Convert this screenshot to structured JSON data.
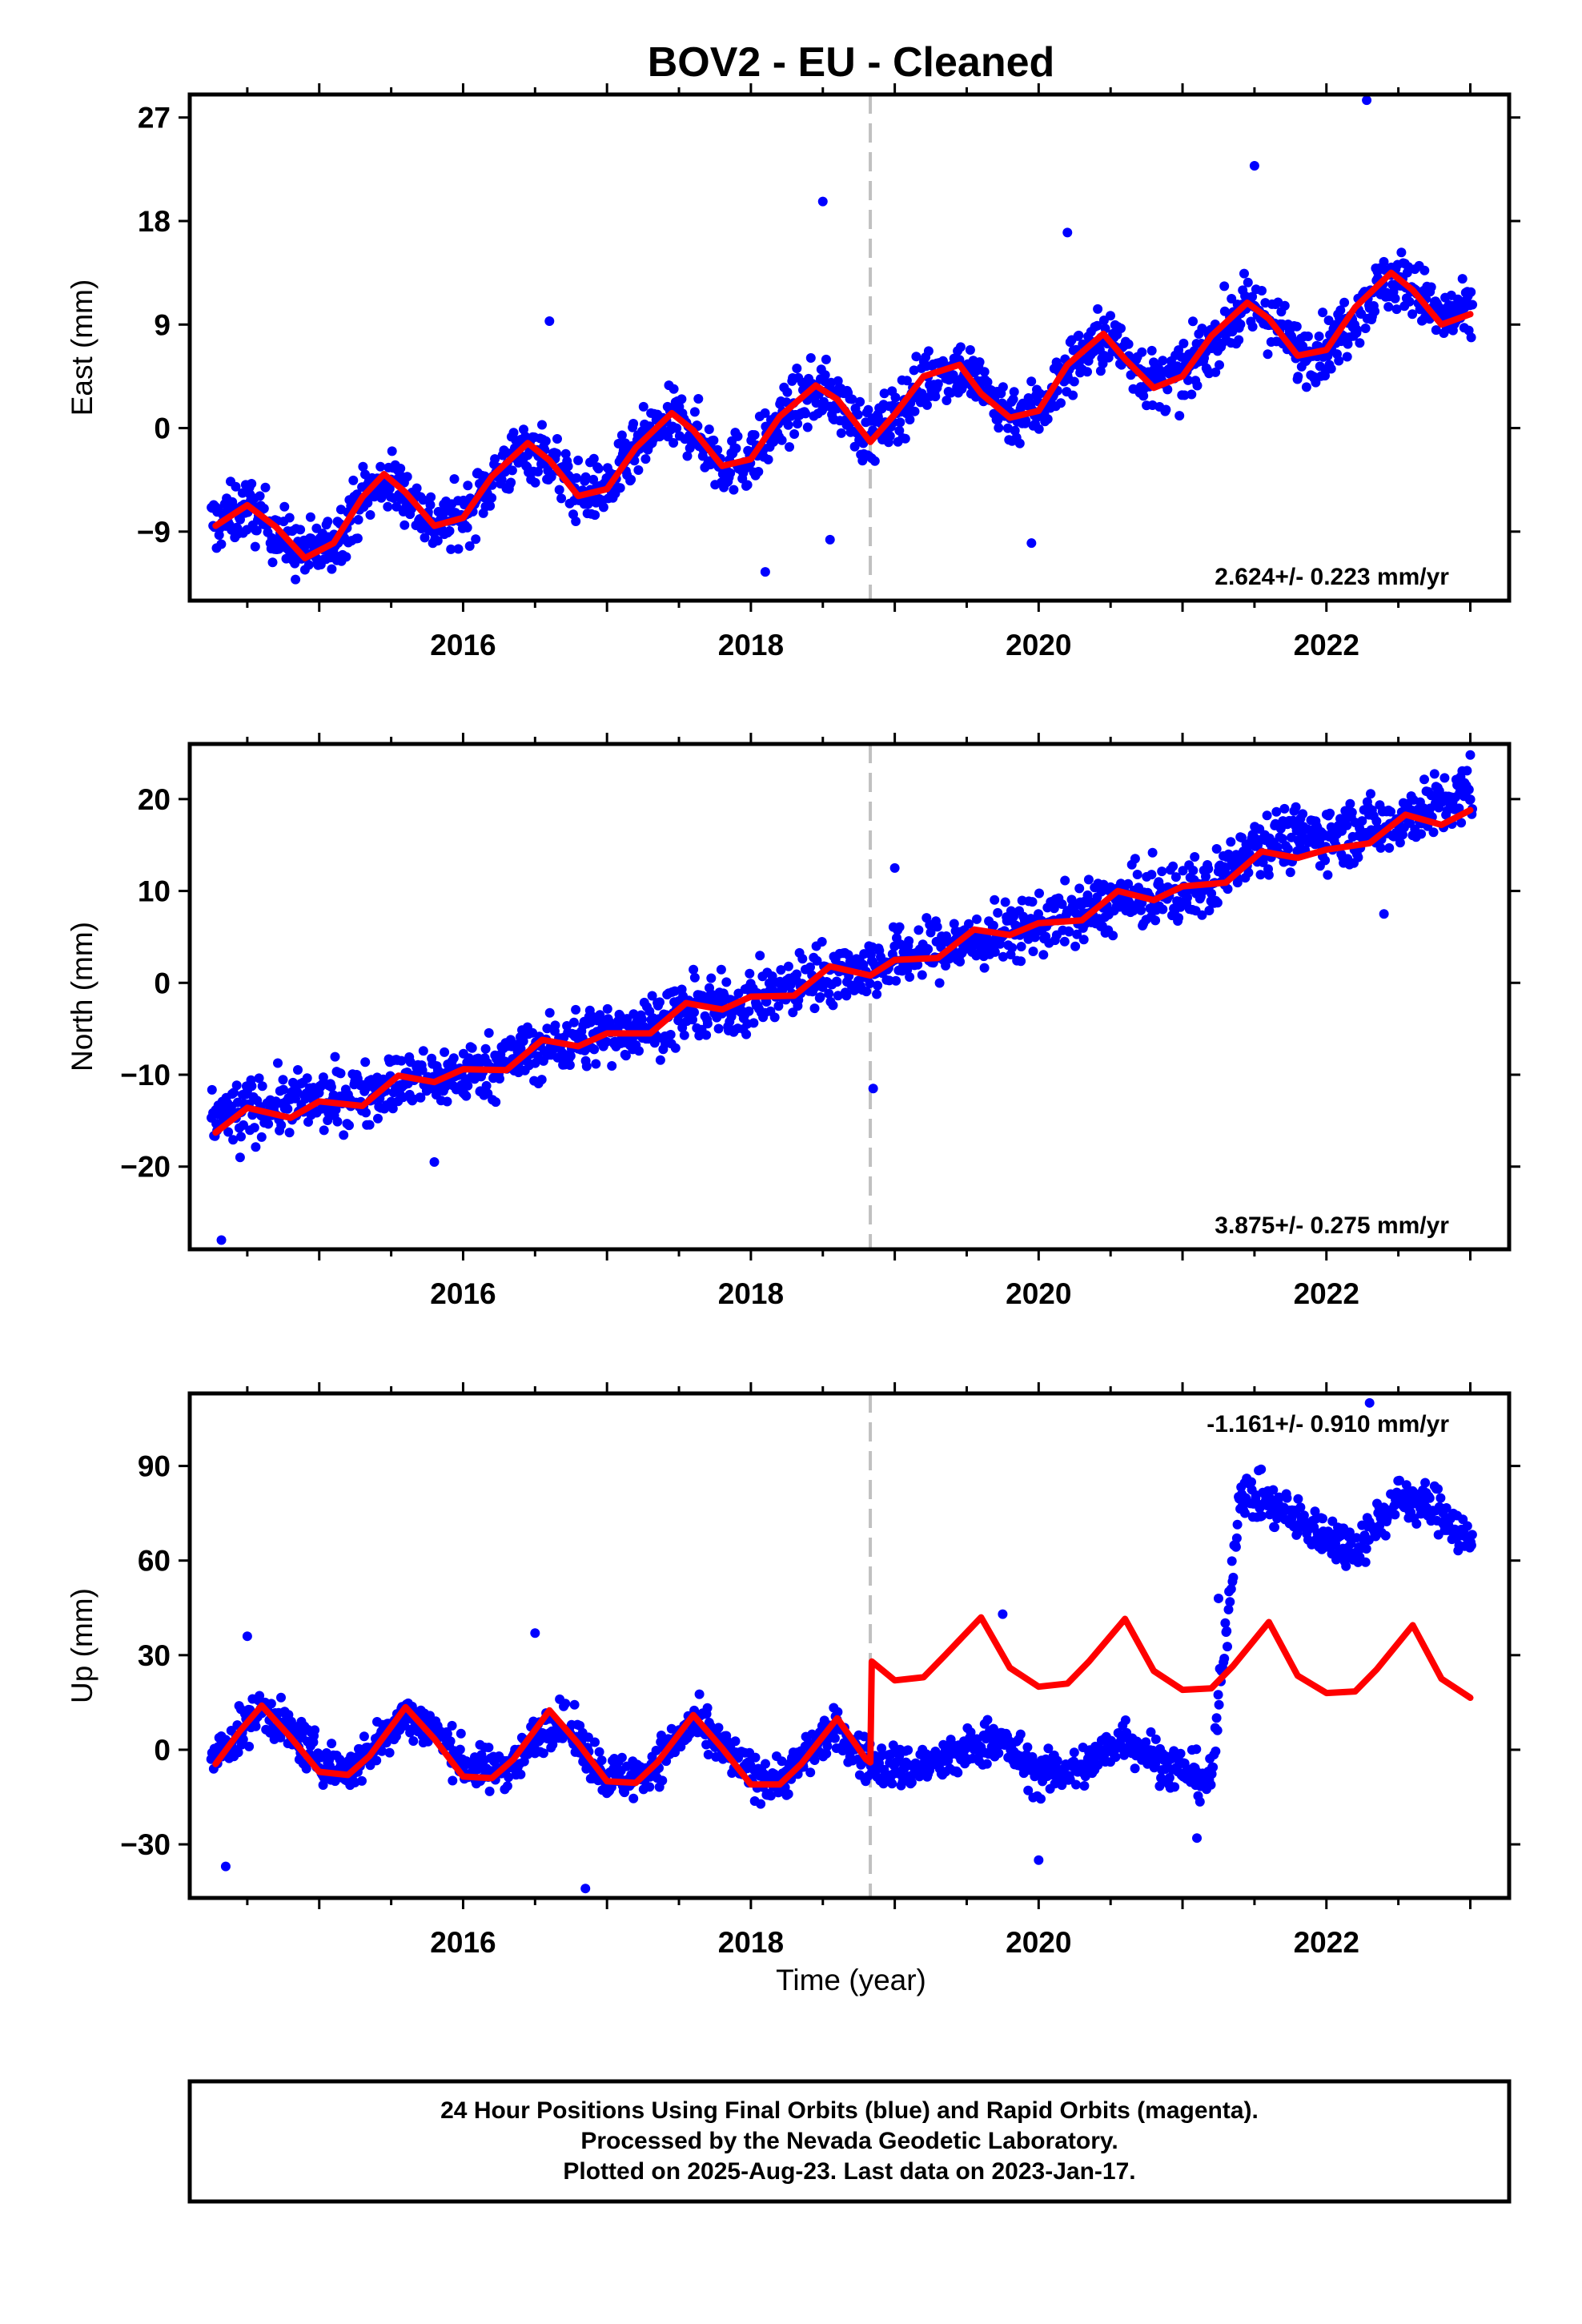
{
  "title": "BOV2  - EU - Cleaned",
  "xlabel": "Time (year)",
  "x_tick_labels": [
    "2016",
    "2018",
    "2020",
    "2022"
  ],
  "footer": {
    "line1": "24 Hour Positions Using Final Orbits (blue) and Rapid Orbits (magenta).",
    "line2": "Processed by the Nevada Geodetic Laboratory.",
    "line3": "Plotted on 2025-Aug-23. Last data on 2023-Jan-17."
  },
  "colors": {
    "points": "#0000ff",
    "model": "#ff0000",
    "break_line": "#c0c0c0",
    "frame": "#000000"
  },
  "chart_data": [
    {
      "type": "scatter",
      "ylabel": "East (mm)",
      "xlim": [
        2014.1,
        2023.27
      ],
      "ylim": [
        -15,
        29
      ],
      "yticks": [
        -9,
        0,
        9,
        18,
        27
      ],
      "xticks": [
        2016,
        2018,
        2020,
        2022
      ],
      "equipment_change": 2018.83,
      "rate_label": "2.624+/- 0.223 mm/yr",
      "rate_position": "bottom-right",
      "series": [
        {
          "kind": "model",
          "x": [
            2014.28,
            2014.5,
            2014.7,
            2014.9,
            2015.1,
            2015.3,
            2015.45,
            2015.6,
            2015.8,
            2016.0,
            2016.2,
            2016.45,
            2016.6,
            2016.8,
            2017.0,
            2017.2,
            2017.45,
            2017.6,
            2017.8,
            2018.0,
            2018.2,
            2018.45,
            2018.6,
            2018.83,
            2019.0,
            2019.2,
            2019.45,
            2019.6,
            2019.8,
            2020.0,
            2020.2,
            2020.45,
            2020.6,
            2020.8,
            2021.0,
            2021.2,
            2021.45,
            2021.6,
            2021.8,
            2022.0,
            2022.2,
            2022.45,
            2022.6,
            2022.8,
            2023.0
          ],
          "y": [
            -8.5,
            -6.7,
            -8.6,
            -11.3,
            -10.0,
            -6.0,
            -4.0,
            -5.6,
            -8.5,
            -7.8,
            -4.2,
            -1.3,
            -2.8,
            -5.9,
            -5.3,
            -1.7,
            1.3,
            -0.2,
            -3.3,
            -2.7,
            1.0,
            3.7,
            2.5,
            -1.2,
            1.2,
            4.5,
            5.5,
            3.0,
            0.9,
            1.5,
            5.5,
            8.2,
            6.0,
            3.5,
            4.5,
            8.0,
            10.9,
            9.5,
            6.3,
            6.8,
            10.5,
            13.5,
            12.0,
            9.0,
            9.9
          ]
        },
        {
          "kind": "points",
          "x": [
            2014.3,
            2014.5,
            2014.8,
            2015.05,
            2015.3,
            2015.55,
            2015.8,
            2016.05,
            2016.3,
            2016.55,
            2016.8,
            2017.05,
            2017.3,
            2017.55,
            2017.8,
            2018.05,
            2018.3,
            2018.55,
            2018.8,
            2019.05,
            2019.3,
            2019.55,
            2019.8,
            2020.05,
            2020.3,
            2020.55,
            2020.8,
            2021.05,
            2021.3,
            2021.55,
            2021.8,
            2022.05,
            2022.3,
            2022.55,
            2022.8,
            2023.0
          ],
          "y": [
            -8.0,
            -7.0,
            -10.5,
            -10.5,
            -6.2,
            -4.8,
            -8.6,
            -7.0,
            -3.5,
            -1.8,
            -5.5,
            -4.8,
            -1.0,
            0.5,
            -3.0,
            -2.4,
            1.5,
            3.2,
            -0.6,
            1.5,
            4.8,
            5.0,
            1.4,
            2.0,
            6.2,
            7.8,
            4.2,
            4.8,
            8.5,
            10.4,
            7.0,
            7.2,
            11.0,
            13.0,
            10.2,
            9.8
          ],
          "outliers": [
            [
              2018.5,
              19.7
            ],
            [
              2022.28,
              28.5
            ],
            [
              2021.5,
              22.8
            ],
            [
              2016.6,
              9.3
            ],
            [
              2019.95,
              -10.0
            ],
            [
              2018.1,
              -12.5
            ],
            [
              2018.55,
              -9.7
            ],
            [
              2020.2,
              17.0
            ]
          ]
        }
      ]
    },
    {
      "type": "scatter",
      "ylabel": "North (mm)",
      "xlim": [
        2014.1,
        2023.27
      ],
      "ylim": [
        -29,
        26
      ],
      "yticks": [
        -20,
        -10,
        0,
        10,
        20
      ],
      "xticks": [
        2016,
        2018,
        2020,
        2022
      ],
      "equipment_change": 2018.83,
      "rate_label": "3.875+/- 0.275 mm/yr",
      "rate_position": "bottom-right",
      "series": [
        {
          "kind": "model",
          "x": [
            2014.28,
            2014.5,
            2014.8,
            2015.0,
            2015.3,
            2015.55,
            2015.8,
            2016.0,
            2016.3,
            2016.55,
            2016.8,
            2017.0,
            2017.3,
            2017.55,
            2017.8,
            2018.0,
            2018.3,
            2018.55,
            2018.83,
            2019.0,
            2019.3,
            2019.55,
            2019.8,
            2020.0,
            2020.3,
            2020.55,
            2020.8,
            2021.0,
            2021.3,
            2021.55,
            2021.8,
            2022.0,
            2022.3,
            2022.55,
            2022.8,
            2023.0
          ],
          "y": [
            -16.3,
            -13.6,
            -14.7,
            -12.9,
            -13.4,
            -10.1,
            -10.8,
            -9.4,
            -9.5,
            -6.2,
            -6.9,
            -5.5,
            -5.5,
            -2.2,
            -2.9,
            -1.5,
            -1.4,
            1.8,
            0.8,
            2.5,
            2.7,
            5.8,
            5.2,
            6.5,
            6.8,
            10.0,
            9.0,
            10.5,
            10.9,
            14.3,
            13.6,
            14.5,
            15.2,
            18.3,
            17.2,
            18.8
          ]
        },
        {
          "kind": "points",
          "x": [
            2014.3,
            2014.6,
            2014.9,
            2015.2,
            2015.5,
            2015.8,
            2016.1,
            2016.4,
            2016.7,
            2017.0,
            2017.3,
            2017.6,
            2017.9,
            2018.2,
            2018.5,
            2018.8,
            2019.1,
            2019.4,
            2019.7,
            2020.0,
            2020.3,
            2020.6,
            2020.9,
            2021.2,
            2021.5,
            2021.8,
            2022.1,
            2022.4,
            2022.7,
            2023.0
          ],
          "y": [
            -14.5,
            -13.5,
            -13.0,
            -12.5,
            -11.0,
            -10.5,
            -9.5,
            -8.0,
            -6.5,
            -5.5,
            -4.5,
            -3.0,
            -2.5,
            -1.0,
            1.0,
            1.5,
            3.0,
            4.0,
            5.0,
            6.5,
            7.5,
            9.0,
            9.5,
            10.5,
            15.5,
            15.8,
            16.2,
            17.2,
            19.0,
            20.5
          ],
          "outliers": [
            [
              2014.32,
              -28.0
            ],
            [
              2018.85,
              -11.5
            ],
            [
              2019.0,
              12.5
            ],
            [
              2015.8,
              -19.5
            ],
            [
              2014.45,
              -19.0
            ],
            [
              2022.4,
              7.5
            ],
            [
              2023.0,
              24.8
            ]
          ]
        }
      ]
    },
    {
      "type": "scatter",
      "ylabel": "Up (mm)",
      "xlim": [
        2014.1,
        2023.27
      ],
      "ylim": [
        -47,
        113
      ],
      "yticks": [
        -30,
        0,
        30,
        60,
        90
      ],
      "xticks": [
        2016,
        2018,
        2020,
        2022
      ],
      "equipment_change": 2018.83,
      "rate_label": "-1.161+/- 0.910 mm/yr",
      "rate_position": "top-right",
      "series": [
        {
          "kind": "model",
          "x": [
            2014.28,
            2014.45,
            2014.6,
            2014.8,
            2015.0,
            2015.2,
            2015.35,
            2015.6,
            2015.8,
            2016.0,
            2016.2,
            2016.35,
            2016.6,
            2016.8,
            2017.0,
            2017.2,
            2017.35,
            2017.6,
            2017.8,
            2018.0,
            2018.2,
            2018.35,
            2018.6,
            2018.8,
            2018.83,
            2018.84,
            2019.0,
            2019.2,
            2019.35,
            2019.6,
            2019.8,
            2020.0,
            2020.2,
            2020.35,
            2020.6,
            2020.8,
            2021.0,
            2021.2,
            2021.35,
            2021.6,
            2021.8,
            2022.0,
            2022.2,
            2022.35,
            2022.6,
            2022.8,
            2023.0
          ],
          "y": [
            -4.5,
            6.0,
            14.0,
            4.0,
            -7.0,
            -8.0,
            -2.0,
            13.5,
            3.5,
            -8.5,
            -9.0,
            -3.0,
            12.5,
            2.0,
            -10.0,
            -10.5,
            -4.0,
            11.0,
            0.5,
            -11.0,
            -11.0,
            -4.5,
            10.0,
            -3.0,
            -4.0,
            28.0,
            22.0,
            23.0,
            30.0,
            42.0,
            26.0,
            20.0,
            21.0,
            28.0,
            41.5,
            25.0,
            19.0,
            19.5,
            26.5,
            40.5,
            23.5,
            18.0,
            18.5,
            25.5,
            39.5,
            22.5,
            16.5
          ]
        },
        {
          "kind": "points",
          "x": [
            2014.3,
            2014.6,
            2014.9,
            2015.2,
            2015.5,
            2015.8,
            2016.1,
            2016.4,
            2016.7,
            2017.0,
            2017.3,
            2017.6,
            2017.9,
            2018.2,
            2018.5,
            2018.8,
            2019.1,
            2019.4,
            2019.7,
            2020.0,
            2020.3,
            2020.6,
            2020.9,
            2021.2,
            2021.4,
            2021.6,
            2021.9,
            2022.2,
            2022.5,
            2022.8,
            2023.0
          ],
          "y": [
            0,
            12,
            5,
            -6,
            6,
            10,
            -3,
            -5,
            9,
            -7,
            -6,
            6,
            -2,
            -8,
            3,
            -4,
            -6,
            -3,
            4,
            -8,
            -6,
            4,
            -5,
            -10,
            82,
            78,
            70,
            64,
            80,
            76,
            65
          ],
          "outliers": [
            [
              2014.35,
              -37
            ],
            [
              2016.85,
              -44
            ],
            [
              2014.5,
              36
            ],
            [
              2016.5,
              37
            ],
            [
              2022.3,
              110
            ],
            [
              2021.25,
              48
            ],
            [
              2019.75,
              43
            ],
            [
              2020.0,
              -35
            ],
            [
              2021.1,
              -28
            ]
          ]
        }
      ]
    }
  ]
}
